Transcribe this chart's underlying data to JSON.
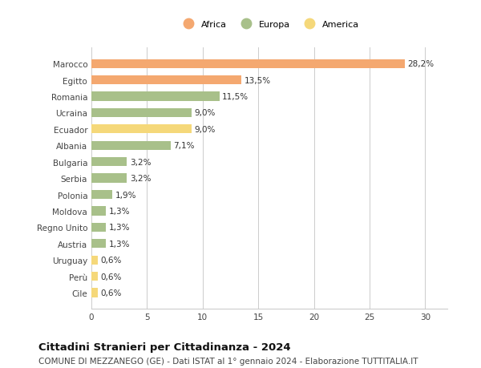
{
  "categories": [
    "Marocco",
    "Egitto",
    "Romania",
    "Ucraina",
    "Ecuador",
    "Albania",
    "Bulgaria",
    "Serbia",
    "Polonia",
    "Moldova",
    "Regno Unito",
    "Austria",
    "Uruguay",
    "Perù",
    "Cile"
  ],
  "values": [
    28.2,
    13.5,
    11.5,
    9.0,
    9.0,
    7.1,
    3.2,
    3.2,
    1.9,
    1.3,
    1.3,
    1.3,
    0.6,
    0.6,
    0.6
  ],
  "labels": [
    "28,2%",
    "13,5%",
    "11,5%",
    "9,0%",
    "9,0%",
    "7,1%",
    "3,2%",
    "3,2%",
    "1,9%",
    "1,3%",
    "1,3%",
    "1,3%",
    "0,6%",
    "0,6%",
    "0,6%"
  ],
  "colors": [
    "#F4A870",
    "#F4A870",
    "#A8C08A",
    "#A8C08A",
    "#F5D87A",
    "#A8C08A",
    "#A8C08A",
    "#A8C08A",
    "#A8C08A",
    "#A8C08A",
    "#A8C08A",
    "#A8C08A",
    "#F5D87A",
    "#F5D87A",
    "#F5D87A"
  ],
  "legend": [
    {
      "label": "Africa",
      "color": "#F4A870"
    },
    {
      "label": "Europa",
      "color": "#A8C08A"
    },
    {
      "label": "America",
      "color": "#F5D87A"
    }
  ],
  "xlim": [
    0,
    32
  ],
  "xticks": [
    0,
    5,
    10,
    15,
    20,
    25,
    30
  ],
  "title": "Cittadini Stranieri per Cittadinanza - 2024",
  "subtitle": "COMUNE DI MEZZANEGO (GE) - Dati ISTAT al 1° gennaio 2024 - Elaborazione TUTTITALIA.IT",
  "background_color": "#ffffff",
  "grid_color": "#cccccc",
  "bar_height": 0.55,
  "label_fontsize": 7.5,
  "tick_fontsize": 7.5,
  "title_fontsize": 9.5,
  "subtitle_fontsize": 7.5
}
